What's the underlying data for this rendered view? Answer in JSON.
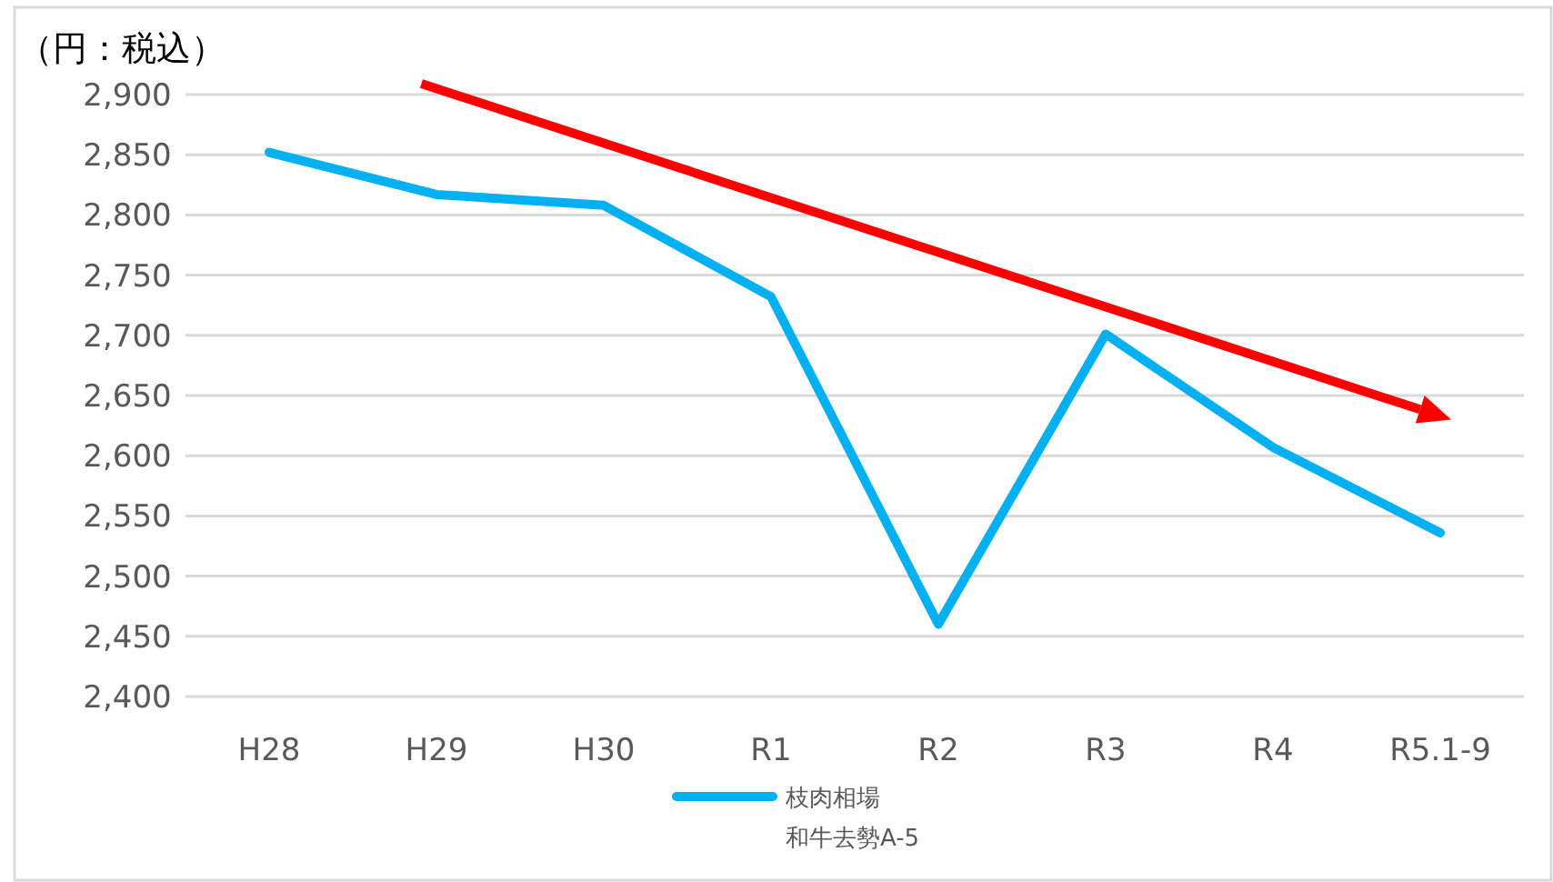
{
  "chart_data": {
    "type": "line",
    "ylabel": "（円：税込）",
    "categories": [
      "H28",
      "H29",
      "H30",
      "R1",
      "R2",
      "R3",
      "R4",
      "R5.1-9"
    ],
    "series": [
      {
        "name": "枝肉相場和牛去勢A-5",
        "color": "#00b0f0",
        "values": [
          2852,
          2817,
          2808,
          2732,
          2460,
          2701,
          2607,
          2536
        ]
      }
    ],
    "ylim": [
      2400,
      2900
    ],
    "yticks": [
      {
        "value": 2400,
        "label": "2,400"
      },
      {
        "value": 2450,
        "label": "2,450"
      },
      {
        "value": 2500,
        "label": "2,500"
      },
      {
        "value": 2550,
        "label": "2,550"
      },
      {
        "value": 2600,
        "label": "2,600"
      },
      {
        "value": 2650,
        "label": "2,650"
      },
      {
        "value": 2700,
        "label": "2,700"
      },
      {
        "value": 2750,
        "label": "2,750"
      },
      {
        "value": 2800,
        "label": "2,800"
      },
      {
        "value": 2850,
        "label": "2,850"
      },
      {
        "value": 2900,
        "label": "2,900"
      }
    ],
    "grid": "y",
    "legend": "bottom",
    "marker": "none",
    "line_style": "solid"
  }
}
